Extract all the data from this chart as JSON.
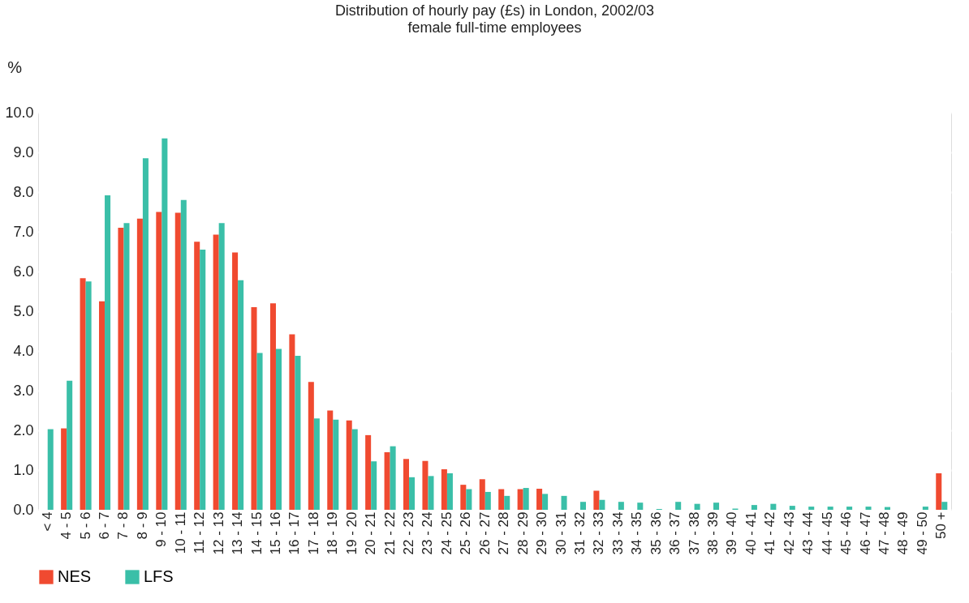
{
  "chart_data": {
    "type": "bar",
    "title": "Distribution of hourly pay (£s) in London, 2002/03",
    "subtitle": "female full-time employees",
    "ylabel": "%",
    "categories": [
      "< 4",
      "4 - 5",
      "5 - 6",
      "6 - 7",
      "7 - 8",
      "8 - 9",
      "9 - 10",
      "10 - 11",
      "11 - 12",
      "12 - 13",
      "13 - 14",
      "14 - 15",
      "15 - 16",
      "16 - 17",
      "17 - 18",
      "18 - 19",
      "19 - 20",
      "20 - 21",
      "21 - 22",
      "22 - 23",
      "23 - 24",
      "24 - 25",
      "25 - 26",
      "26 - 27",
      "27 - 28",
      "28 - 29",
      "29 - 30",
      "30 - 31",
      "31 - 32",
      "32 - 33",
      "33 - 34",
      "34 - 35",
      "35 - 36",
      "36 - 37",
      "37 - 38",
      "38 - 39",
      "39 - 40",
      "40 - 41",
      "41 - 42",
      "42 - 43",
      "43 - 44",
      "44 - 45",
      "45 - 46",
      "46 - 47",
      "47 - 48",
      "48 - 49",
      "49 - 50",
      "50 +"
    ],
    "series": [
      {
        "name": "NES",
        "color": "#f04a30",
        "values": [
          null,
          2.05,
          5.83,
          5.25,
          7.1,
          7.33,
          7.5,
          7.48,
          6.75,
          6.93,
          6.48,
          5.1,
          5.2,
          4.42,
          3.22,
          2.5,
          2.25,
          1.88,
          1.45,
          1.28,
          1.23,
          1.02,
          0.63,
          0.77,
          0.52,
          0.52,
          0.53,
          null,
          null,
          0.48,
          null,
          null,
          null,
          null,
          null,
          null,
          null,
          null,
          null,
          null,
          null,
          null,
          null,
          null,
          null,
          null,
          null,
          0.92
        ]
      },
      {
        "name": "LFS",
        "color": "#3abfa8",
        "values": [
          2.03,
          3.25,
          5.75,
          7.92,
          7.22,
          8.85,
          9.35,
          7.8,
          6.55,
          7.22,
          5.78,
          3.95,
          4.05,
          3.88,
          2.3,
          2.27,
          2.03,
          1.22,
          1.6,
          0.82,
          0.85,
          0.92,
          0.52,
          0.45,
          0.35,
          0.55,
          0.4,
          0.35,
          0.2,
          0.25,
          0.2,
          0.18,
          0.02,
          0.2,
          0.15,
          0.18,
          0.03,
          0.12,
          0.15,
          0.1,
          0.08,
          0.08,
          0.08,
          0.08,
          0.07,
          null,
          0.08,
          0.2
        ]
      }
    ],
    "ylim": [
      0,
      10
    ],
    "yticks": [
      {
        "value": 0,
        "label": "0.0"
      },
      {
        "value": 1,
        "label": "1.0"
      },
      {
        "value": 2,
        "label": "2.0"
      },
      {
        "value": 3,
        "label": "3.0"
      },
      {
        "value": 4,
        "label": "4.0"
      },
      {
        "value": 5,
        "label": "5.0"
      },
      {
        "value": 6,
        "label": "6.0"
      },
      {
        "value": 7,
        "label": "7.0"
      },
      {
        "value": 8,
        "label": "8.0"
      },
      {
        "value": 9,
        "label": "9.0"
      },
      {
        "value": 10,
        "label": "10.0"
      }
    ],
    "grid": "y",
    "legend": "bottom"
  }
}
